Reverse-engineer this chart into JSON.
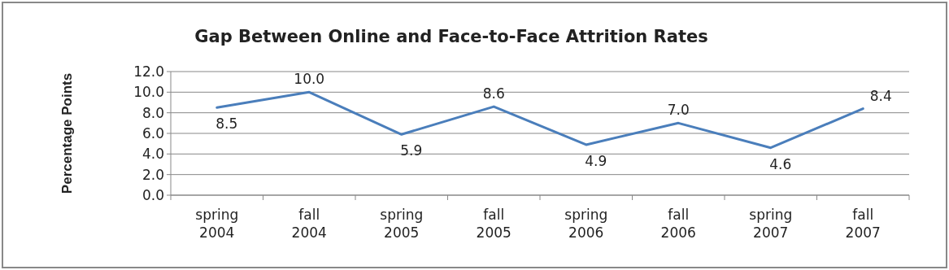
{
  "chart_data": {
    "type": "line",
    "title": "Gap Between Online and  Face-to-Face Attrition Rates",
    "ylabel": "Percentage Points",
    "categories": [
      "spring 2004",
      "fall 2004",
      "spring 2005",
      "fall 2005",
      "spring 2006",
      "fall 2006",
      "spring 2007",
      "fall 2007"
    ],
    "series": [
      {
        "color": "#4a7ebb",
        "values": [
          8.5,
          10.0,
          5.9,
          8.6,
          4.9,
          7.0,
          4.6,
          8.4
        ],
        "value_labels": [
          "8.5",
          "10.0",
          "5.9",
          "8.6",
          "4.9",
          "7.0",
          "4.6",
          "8.4"
        ]
      }
    ],
    "ylim": [
      0,
      12
    ],
    "yticks": [
      {
        "value": 0,
        "label": "0.0"
      },
      {
        "value": 2,
        "label": "2.0"
      },
      {
        "value": 4,
        "label": "4.0"
      },
      {
        "value": 6,
        "label": "6.0"
      },
      {
        "value": 8,
        "label": "8.0"
      },
      {
        "value": 10,
        "label": "10.0"
      },
      {
        "value": 12,
        "label": "12.0"
      }
    ],
    "grid": "y",
    "marker": "none",
    "line_style": "solid"
  }
}
